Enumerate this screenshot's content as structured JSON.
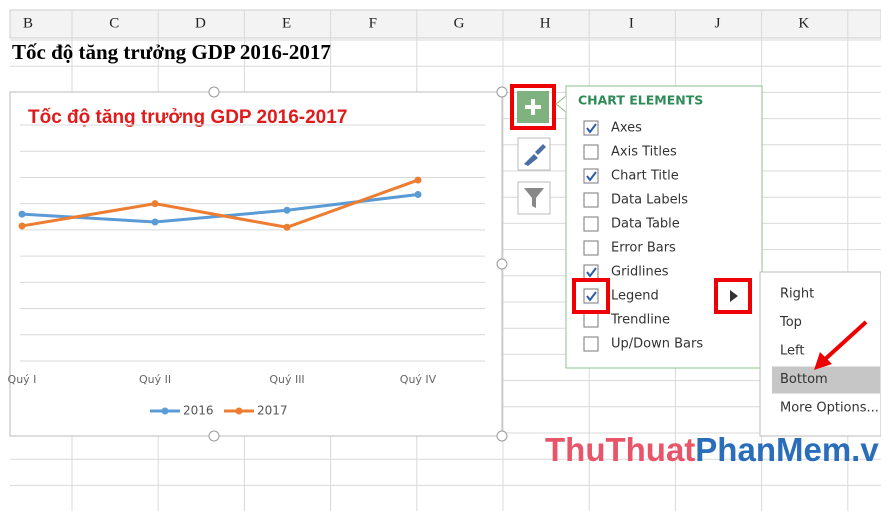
{
  "column_headers": [
    "B",
    "C",
    "D",
    "E",
    "F",
    "G",
    "H",
    "I",
    "J",
    "K"
  ],
  "sheet_title": "Tốc độ tăng trưởng GDP 2016-2017",
  "chart_data": {
    "type": "line",
    "title": "Tốc độ tăng trưởng GDP 2016-2017",
    "categories": [
      "Quý I",
      "Quý II",
      "Quý III",
      "Quý IV"
    ],
    "series": [
      {
        "name": "2016",
        "color": "#5b9bd5",
        "values": [
          5.6,
          5.3,
          5.75,
          6.35
        ]
      },
      {
        "name": "2017",
        "color": "#ed7d31",
        "values": [
          5.15,
          6.0,
          5.1,
          6.9
        ]
      }
    ],
    "ylim": [
      0,
      9
    ],
    "yticks": [
      0,
      1,
      2,
      3,
      4,
      5,
      6,
      7,
      8,
      9
    ],
    "grid": true,
    "legend": "bottom"
  },
  "chart_elements": {
    "title": "CHART ELEMENTS",
    "items": [
      {
        "label": "Axes",
        "checked": true
      },
      {
        "label": "Axis Titles",
        "checked": false
      },
      {
        "label": "Chart Title",
        "checked": true
      },
      {
        "label": "Data Labels",
        "checked": false
      },
      {
        "label": "Data Table",
        "checked": false
      },
      {
        "label": "Error Bars",
        "checked": false
      },
      {
        "label": "Gridlines",
        "checked": true
      },
      {
        "label": "Legend",
        "checked": true
      },
      {
        "label": "Trendline",
        "checked": false
      },
      {
        "label": "Up/Down Bars",
        "checked": false
      }
    ]
  },
  "legend_submenu": {
    "items": [
      "Right",
      "Top",
      "Left",
      "Bottom",
      "More Options..."
    ],
    "selected": 3
  },
  "watermark": [
    "ThuThuat",
    "PhanMem",
    ".vn"
  ]
}
